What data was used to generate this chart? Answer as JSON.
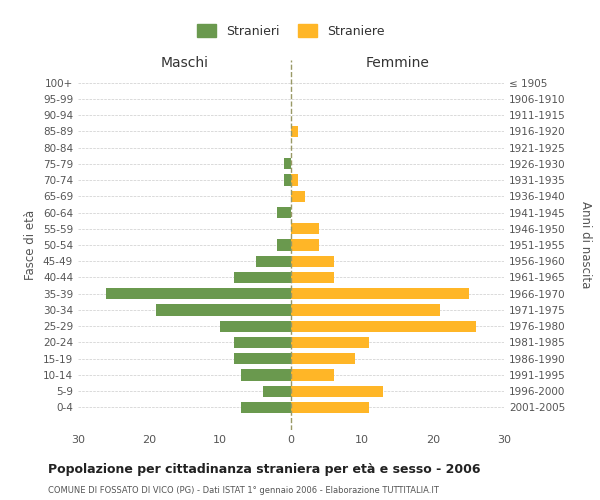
{
  "age_groups": [
    "100+",
    "95-99",
    "90-94",
    "85-89",
    "80-84",
    "75-79",
    "70-74",
    "65-69",
    "60-64",
    "55-59",
    "50-54",
    "45-49",
    "40-44",
    "35-39",
    "30-34",
    "25-29",
    "20-24",
    "15-19",
    "10-14",
    "5-9",
    "0-4"
  ],
  "birth_years": [
    "≤ 1905",
    "1906-1910",
    "1911-1915",
    "1916-1920",
    "1921-1925",
    "1926-1930",
    "1931-1935",
    "1936-1940",
    "1941-1945",
    "1946-1950",
    "1951-1955",
    "1956-1960",
    "1961-1965",
    "1966-1970",
    "1971-1975",
    "1976-1980",
    "1981-1985",
    "1986-1990",
    "1991-1995",
    "1996-2000",
    "2001-2005"
  ],
  "maschi": [
    0,
    0,
    0,
    0,
    0,
    1,
    1,
    0,
    2,
    0,
    2,
    5,
    8,
    26,
    19,
    10,
    8,
    8,
    7,
    4,
    7
  ],
  "femmine": [
    0,
    0,
    0,
    1,
    0,
    0,
    1,
    2,
    0,
    4,
    4,
    6,
    6,
    25,
    21,
    26,
    11,
    9,
    6,
    13,
    11
  ],
  "maschi_color": "#6a994e",
  "femmine_color": "#ffb627",
  "background_color": "#ffffff",
  "grid_color": "#cccccc",
  "ylabel_left": "Fasce di età",
  "ylabel_right": "Anni di nascita",
  "title_main": "Popolazione per cittadinanza straniera per età e sesso - 2006",
  "subtitle": "COMUNE DI FOSSATO DI VICO (PG) - Dati ISTAT 1° gennaio 2006 - Elaborazione TUTTITALIA.IT",
  "header_maschi": "Maschi",
  "header_femmine": "Femmine",
  "legend_stranieri": "Stranieri",
  "legend_straniere": "Straniere",
  "xlim": 30,
  "bar_height": 0.7
}
